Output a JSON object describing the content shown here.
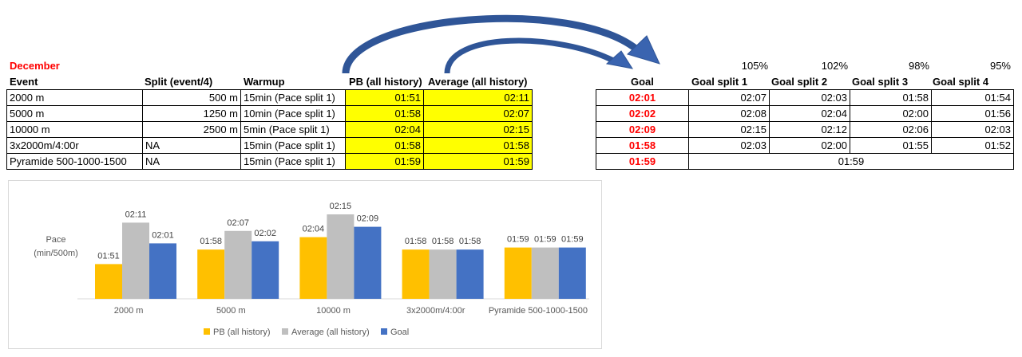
{
  "title": "December",
  "left_table": {
    "headers": [
      "Event",
      "Split (event/4)",
      "Warmup",
      "PB (all history)",
      "Average (all history)"
    ],
    "rows": [
      {
        "event": "2000 m",
        "split": "500 m",
        "warmup": "15min (Pace split 1)",
        "pb": "01:51",
        "avg": "02:11"
      },
      {
        "event": "5000 m",
        "split": "1250 m",
        "warmup": "10min (Pace split 1)",
        "pb": "01:58",
        "avg": "02:07"
      },
      {
        "event": "10000 m",
        "split": "2500 m",
        "warmup": "5min (Pace split 1)",
        "pb": "02:04",
        "avg": "02:15"
      },
      {
        "event": "3x2000m/4:00r",
        "split": "NA",
        "warmup": "15min (Pace split 1)",
        "pb": "01:58",
        "avg": "01:58"
      },
      {
        "event": "Pyramide 500-1000-1500",
        "split": "NA",
        "warmup": "15min (Pace split 1)",
        "pb": "01:59",
        "avg": "01:59"
      }
    ]
  },
  "right_table": {
    "percents": [
      "105%",
      "102%",
      "98%",
      "95%"
    ],
    "headers": [
      "Goal",
      "Goal split 1",
      "Goal split 2",
      "Goal split 3",
      "Goal split 4"
    ],
    "rows": [
      {
        "goal": "02:01",
        "s1": "02:07",
        "s2": "02:03",
        "s3": "01:58",
        "s4": "01:54"
      },
      {
        "goal": "02:02",
        "s1": "02:08",
        "s2": "02:04",
        "s3": "02:00",
        "s4": "01:56"
      },
      {
        "goal": "02:09",
        "s1": "02:15",
        "s2": "02:12",
        "s3": "02:06",
        "s4": "02:03"
      },
      {
        "goal": "01:58",
        "s1": "02:03",
        "s2": "02:00",
        "s3": "01:55",
        "s4": "01:52"
      },
      {
        "goal": "01:59",
        "merged": "01:59"
      }
    ]
  },
  "colors": {
    "highlight": "#ffff00",
    "goal_text": "#ff0000",
    "arrow": "#3a64b0",
    "pb": "#ffc000",
    "average": "#bfbfbf",
    "goal": "#4472c4"
  },
  "chart_data": {
    "type": "bar",
    "ylabel": "Pace\n(min/500m)",
    "categories": [
      "2000 m",
      "5000 m",
      "10000 m",
      "3x2000m/4:00r",
      "Pyramide 500-1000-1500"
    ],
    "series": [
      {
        "name": "PB (all history)",
        "values": [
          111,
          118,
          124,
          118,
          119
        ],
        "labels": [
          "01:51",
          "01:58",
          "02:04",
          "01:58",
          "01:59"
        ]
      },
      {
        "name": "Average (all history)",
        "values": [
          131,
          127,
          135,
          118,
          119
        ],
        "labels": [
          "02:11",
          "02:07",
          "02:15",
          "01:58",
          "01:59"
        ]
      },
      {
        "name": "Goal",
        "values": [
          121,
          122,
          129,
          118,
          119
        ],
        "labels": [
          "02:01",
          "02:02",
          "02:09",
          "01:58",
          "01:59"
        ]
      }
    ],
    "legend": "bottom",
    "grid": false
  }
}
